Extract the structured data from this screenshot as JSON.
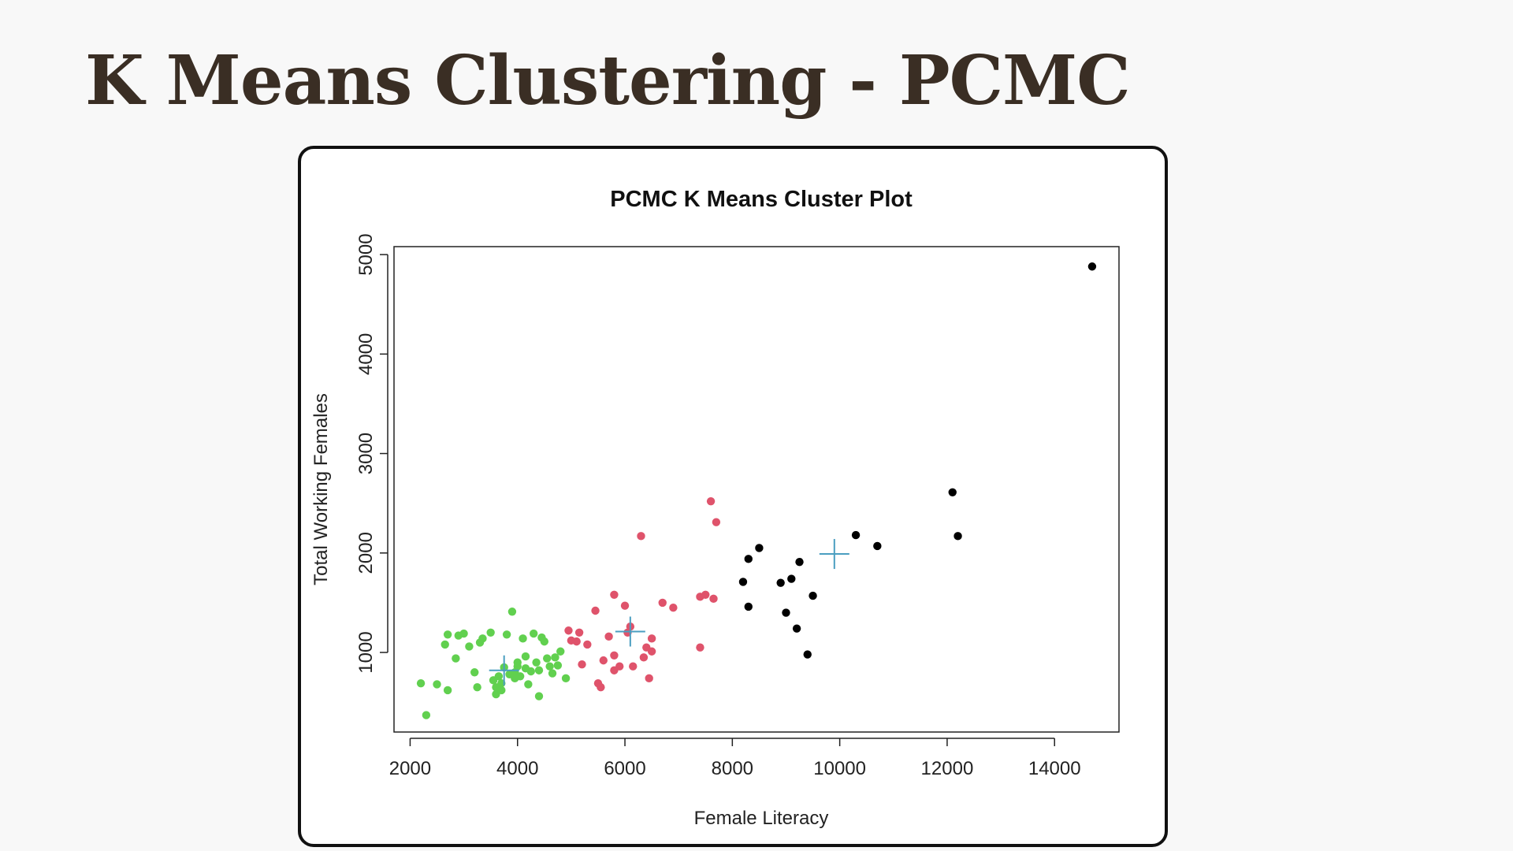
{
  "slide": {
    "title": "K Means Clustering - PCMC"
  },
  "colors": {
    "background": "#f8f8f8",
    "title": "#3a2e24",
    "cluster_green": "#61d04f",
    "cluster_red": "#df536b",
    "cluster_black": "#000000",
    "centroid": "#4a9ec0"
  },
  "chart_data": {
    "type": "scatter",
    "title": "PCMC K Means Cluster Plot",
    "xlabel": "Female Literacy",
    "ylabel": "Total Working Females",
    "xlim": [
      1700,
      15200
    ],
    "ylim": [
      200,
      5080
    ],
    "xticks": [
      "2000",
      "4000",
      "6000",
      "8000",
      "10000",
      "12000",
      "14000"
    ],
    "yticks": [
      "1000",
      "2000",
      "3000",
      "4000",
      "5000"
    ],
    "grid": false,
    "legend": "none",
    "series": [
      {
        "color": "#61d04f",
        "points": [
          [
            2200,
            690
          ],
          [
            2300,
            370
          ],
          [
            2500,
            680
          ],
          [
            2700,
            620
          ],
          [
            2650,
            1080
          ],
          [
            2700,
            1180
          ],
          [
            2850,
            940
          ],
          [
            2900,
            1170
          ],
          [
            3000,
            1190
          ],
          [
            3100,
            1060
          ],
          [
            3200,
            800
          ],
          [
            3250,
            650
          ],
          [
            3300,
            1100
          ],
          [
            3350,
            1140
          ],
          [
            3500,
            1200
          ],
          [
            3550,
            720
          ],
          [
            3600,
            650
          ],
          [
            3600,
            580
          ],
          [
            3650,
            760
          ],
          [
            3700,
            690
          ],
          [
            3750,
            850
          ],
          [
            3800,
            1180
          ],
          [
            3850,
            780
          ],
          [
            3900,
            1410
          ],
          [
            3950,
            800
          ],
          [
            4000,
            860
          ],
          [
            4050,
            760
          ],
          [
            4100,
            1140
          ],
          [
            4150,
            960
          ],
          [
            4200,
            680
          ],
          [
            4250,
            810
          ],
          [
            4300,
            1190
          ],
          [
            4350,
            900
          ],
          [
            4400,
            560
          ],
          [
            4400,
            820
          ],
          [
            4450,
            1150
          ],
          [
            4500,
            1110
          ],
          [
            4550,
            940
          ],
          [
            4600,
            860
          ],
          [
            4650,
            790
          ],
          [
            4700,
            950
          ],
          [
            4750,
            870
          ],
          [
            4800,
            1010
          ],
          [
            4900,
            740
          ],
          [
            3700,
            620
          ],
          [
            4000,
            900
          ],
          [
            4150,
            840
          ],
          [
            3950,
            740
          ]
        ]
      },
      {
        "color": "#df536b",
        "points": [
          [
            4950,
            1220
          ],
          [
            5000,
            1120
          ],
          [
            5100,
            1110
          ],
          [
            5150,
            1200
          ],
          [
            5200,
            880
          ],
          [
            5300,
            1080
          ],
          [
            5450,
            1420
          ],
          [
            5500,
            690
          ],
          [
            5550,
            650
          ],
          [
            5600,
            920
          ],
          [
            5700,
            1160
          ],
          [
            5800,
            1580
          ],
          [
            5800,
            970
          ],
          [
            5900,
            860
          ],
          [
            6000,
            1470
          ],
          [
            6050,
            1200
          ],
          [
            6100,
            1260
          ],
          [
            6150,
            860
          ],
          [
            6300,
            2170
          ],
          [
            6350,
            950
          ],
          [
            6400,
            1050
          ],
          [
            6450,
            740
          ],
          [
            6500,
            1140
          ],
          [
            6500,
            1010
          ],
          [
            6700,
            1500
          ],
          [
            6900,
            1450
          ],
          [
            7400,
            1050
          ],
          [
            7400,
            1560
          ],
          [
            7500,
            1580
          ],
          [
            7600,
            2520
          ],
          [
            7650,
            1540
          ],
          [
            7700,
            2310
          ],
          [
            5800,
            820
          ]
        ]
      },
      {
        "color": "#000000",
        "points": [
          [
            8200,
            1710
          ],
          [
            8300,
            1940
          ],
          [
            8300,
            1460
          ],
          [
            8500,
            2050
          ],
          [
            8900,
            1700
          ],
          [
            9000,
            1400
          ],
          [
            9100,
            1740
          ],
          [
            9200,
            1240
          ],
          [
            9250,
            1910
          ],
          [
            9400,
            980
          ],
          [
            9500,
            1570
          ],
          [
            10300,
            2180
          ],
          [
            10700,
            2070
          ],
          [
            12100,
            2610
          ],
          [
            12200,
            2170
          ],
          [
            14700,
            4880
          ]
        ]
      }
    ],
    "centroids": [
      {
        "x": 3750,
        "y": 820,
        "color": "#4a9ec0"
      },
      {
        "x": 6100,
        "y": 1210,
        "color": "#4a9ec0"
      },
      {
        "x": 9900,
        "y": 1990,
        "color": "#4a9ec0"
      }
    ]
  }
}
